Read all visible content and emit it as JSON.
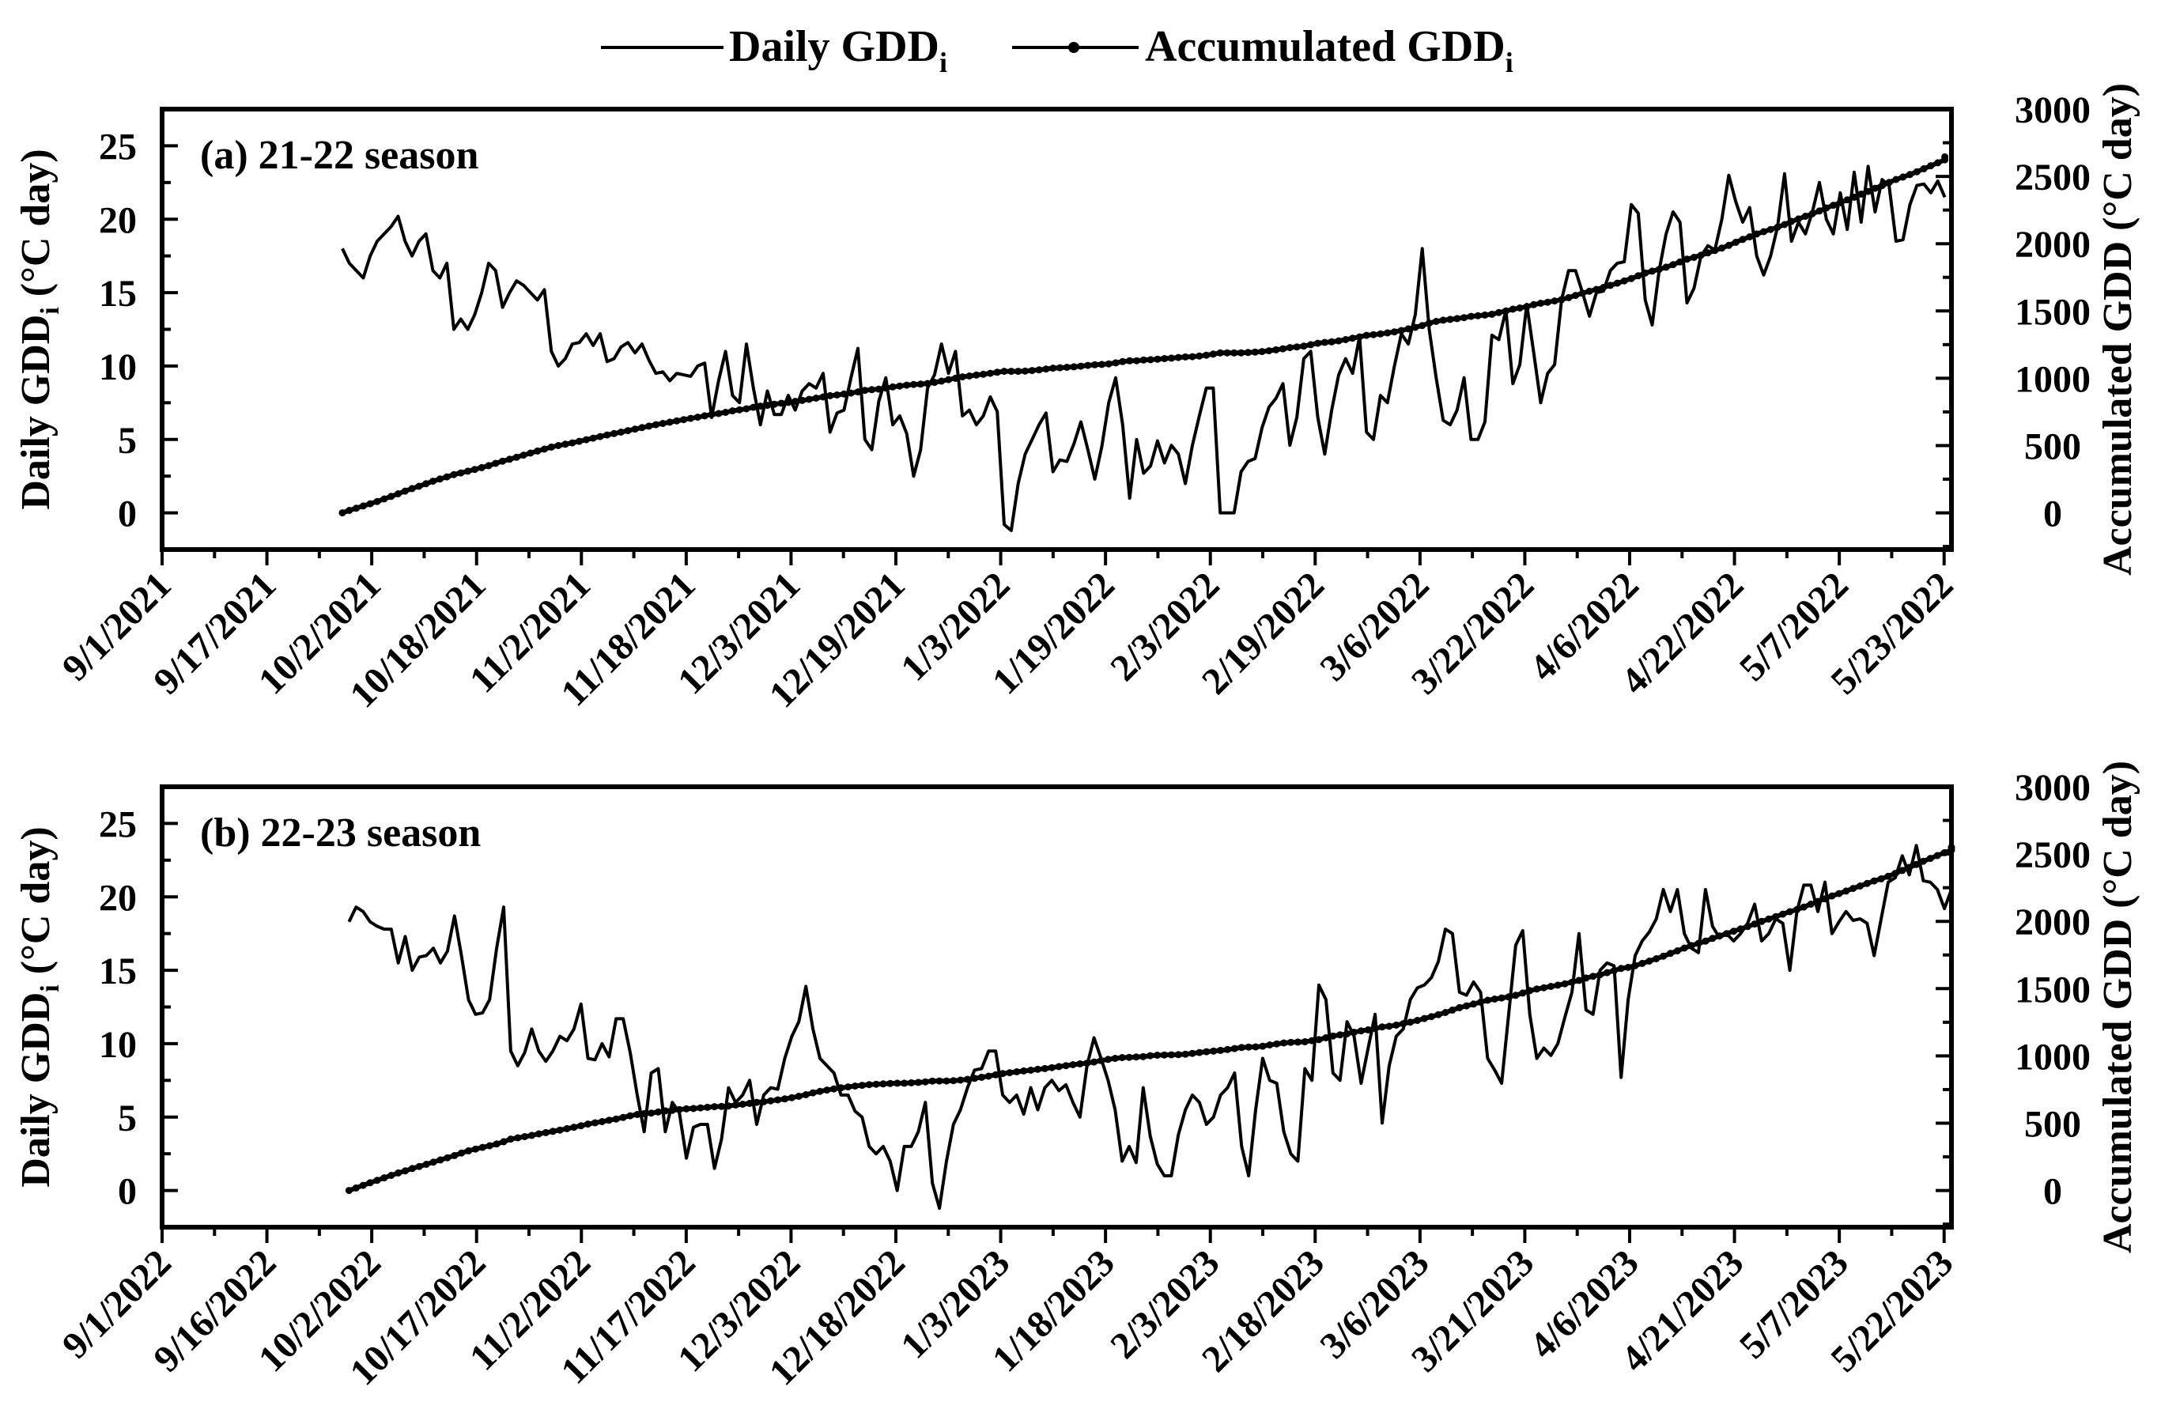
{
  "legend": {
    "daily_label": "Daily GDD",
    "daily_sub": "i",
    "acc_label": "Accumulated GDD",
    "acc_sub": "i"
  },
  "colors": {
    "line": "#000000",
    "background": "#ffffff"
  },
  "chart_data": [
    {
      "type": "line",
      "title": "(a) 21-22 season",
      "ylabel_left_main": "Daily GDD",
      "ylabel_left_sub": "i",
      "ylabel_left_tail": " (°C day)",
      "ylabel_right": "Accumulated GDD (°C day)",
      "xlim": [
        0,
        268
      ],
      "ylim_left": [
        -2.5,
        27.5
      ],
      "ylim_right": [
        -272.7,
        3000
      ],
      "yticks_left": [
        0,
        5,
        10,
        15,
        20,
        25
      ],
      "yticks_right": [
        0,
        500,
        1000,
        1500,
        2000,
        2500,
        3000
      ],
      "xtick_labels": [
        "9/1/2021",
        "9/17/2021",
        "10/2/2021",
        "10/18/2021",
        "11/2/2021",
        "11/18/2021",
        "12/3/2021",
        "12/19/2021",
        "1/3/2022",
        "1/19/2022",
        "2/3/2022",
        "2/19/2022",
        "3/6/2022",
        "3/22/2022",
        "4/6/2022",
        "4/22/2022",
        "5/7/2022",
        "5/23/2022"
      ],
      "start_day": 27,
      "series": [
        {
          "name": "Daily GDDi",
          "values": [
            18,
            17,
            16.5,
            16,
            17.5,
            18.5,
            19,
            19.5,
            20.2,
            18.5,
            17.5,
            18.5,
            19,
            16.5,
            16,
            17,
            12.5,
            13.2,
            12.5,
            13.5,
            15,
            17,
            16.5,
            14,
            15,
            15.8,
            15.5,
            15,
            14.5,
            15.2,
            11,
            10,
            10.5,
            11.5,
            11.6,
            12.2,
            11.4,
            12.2,
            10.3,
            10.5,
            11.3,
            11.6,
            10.9,
            11.5,
            10.4,
            9.5,
            9.6,
            9,
            9.5,
            9.4,
            9.3,
            10,
            10.2,
            6.5,
            9,
            11,
            8,
            7.5,
            11.5,
            8.5,
            6,
            8.3,
            6.7,
            6.7,
            8,
            7,
            8.3,
            8.8,
            8.5,
            9.5,
            5.5,
            6.8,
            7,
            9.2,
            11.2,
            5,
            4.3,
            7.6,
            9.2,
            6,
            6.6,
            5.4,
            2.5,
            4.3,
            8.5,
            9.4,
            11.5,
            9.5,
            11,
            6.6,
            7,
            6,
            6.6,
            7.9,
            6.9,
            -0.8,
            -1.2,
            2,
            4,
            5,
            6,
            6.8,
            2.8,
            3.6,
            3.5,
            4.7,
            6.2,
            4.3,
            2.3,
            4.5,
            7.5,
            9.2,
            6,
            1,
            5,
            2.7,
            3.2,
            4.9,
            3.4,
            4.6,
            4,
            2,
            4.6,
            6.6,
            8.5,
            8.5,
            0,
            0,
            0,
            2.8,
            3.5,
            3.7,
            5.8,
            7.2,
            7.8,
            8.8,
            4.6,
            6.5,
            10.5,
            11,
            6.5,
            4,
            7,
            9.4,
            10.5,
            9.5,
            12,
            5.5,
            5,
            8,
            7.5,
            10,
            12.2,
            11.5,
            13.5,
            18,
            12.5,
            9.2,
            6.3,
            6,
            7,
            9.2,
            5,
            5,
            6.2,
            12.1,
            11.8,
            13.8,
            8.8,
            10.1,
            14.2,
            10.9,
            7.5,
            9.5,
            10.1,
            14.5,
            16.5,
            16.5,
            15,
            13.4,
            15,
            15.1,
            16.5,
            17,
            17.1,
            21,
            20.4,
            14.5,
            12.8,
            16.5,
            19,
            20.5,
            19.8,
            14.3,
            15.3,
            17.5,
            18.2,
            17.9,
            20,
            23,
            21.2,
            19.8,
            20.8,
            17.5,
            16.2,
            17.5,
            19.5,
            23.1,
            18.5,
            19.8,
            19,
            20.5,
            22.5,
            20,
            19,
            21.8,
            19.3,
            23.2,
            19.8,
            23.6,
            20.5,
            22.7,
            22.3,
            18.5,
            18.6,
            21,
            22.3,
            22.4,
            21.8,
            22.6,
            21.5
          ],
          "accumulated_end": 2645
        }
      ]
    },
    {
      "type": "line",
      "title": "(b) 22-23 season",
      "ylabel_left_main": "Daily GDD",
      "ylabel_left_sub": "i",
      "ylabel_left_tail": " (°C day)",
      "ylabel_right": "Accumulated GDD (°C day)",
      "xlim": [
        0,
        268
      ],
      "ylim_left": [
        -2.5,
        27.5
      ],
      "ylim_right": [
        -272.7,
        3000
      ],
      "yticks_left": [
        0,
        5,
        10,
        15,
        20,
        25
      ],
      "yticks_right": [
        0,
        500,
        1000,
        1500,
        2000,
        2500,
        3000
      ],
      "xtick_labels": [
        "9/1/2022",
        "9/16/2022",
        "10/2/2022",
        "10/17/2022",
        "11/2/2022",
        "11/17/2022",
        "12/3/2022",
        "12/18/2022",
        "1/3/2023",
        "1/18/2023",
        "2/3/2023",
        "2/18/2023",
        "3/6/2023",
        "3/21/2023",
        "4/6/2023",
        "4/21/2023",
        "5/7/2023",
        "5/22/2023"
      ],
      "start_day": 28,
      "series": [
        {
          "name": "Daily GDDi",
          "values": [
            18.3,
            19.3,
            19,
            18.3,
            18,
            17.8,
            17.8,
            15.5,
            17.3,
            15,
            15.9,
            16,
            16.5,
            15.5,
            16.3,
            18.7,
            16,
            13,
            12,
            12.1,
            13,
            16.5,
            19.3,
            9.5,
            8.5,
            9.4,
            11,
            9.5,
            8.8,
            9.5,
            10.5,
            10.2,
            11,
            12.7,
            9,
            8.9,
            10,
            9.1,
            11.7,
            11.7,
            9.4,
            6.5,
            4,
            8,
            8.3,
            4,
            6,
            5.3,
            2.2,
            4.3,
            4.5,
            4.5,
            1.5,
            3.5,
            7,
            6,
            6.5,
            7.5,
            4.5,
            6.5,
            7,
            6.9,
            9,
            10.5,
            11.5,
            13.9,
            11,
            9,
            8.5,
            8,
            6.5,
            6.5,
            5.4,
            5,
            3,
            2.5,
            3,
            2,
            0,
            3,
            3,
            4,
            6,
            0.5,
            -1.2,
            2,
            4.5,
            5.5,
            7,
            8.2,
            8.3,
            9.5,
            9.5,
            6.5,
            6,
            6.5,
            5.2,
            7,
            5.5,
            7,
            7.5,
            6.8,
            7.2,
            6,
            5,
            8.5,
            10.4,
            9,
            7.5,
            5.5,
            2,
            3,
            1.9,
            7,
            3.7,
            1.8,
            1,
            1,
            3.8,
            5.5,
            6.5,
            6,
            4.5,
            5,
            6.5,
            7,
            8,
            3,
            1,
            5.5,
            9,
            7.5,
            7.3,
            4,
            2.5,
            2,
            8.3,
            7.5,
            14,
            13,
            8,
            7.5,
            11.5,
            10.5,
            7.3,
            9.7,
            12,
            4.6,
            8.5,
            10.5,
            11,
            13,
            13.8,
            14,
            14.5,
            15.6,
            17.8,
            17.5,
            13.5,
            13.3,
            14.2,
            13.5,
            9,
            8.2,
            7.3,
            12,
            16.7,
            17.7,
            12,
            9,
            9.7,
            9.2,
            10,
            11.8,
            13.5,
            17.5,
            12.3,
            12,
            15,
            15.5,
            15.3,
            7.7,
            13,
            16,
            17,
            17.6,
            18.5,
            20.5,
            19,
            20.5,
            17.5,
            16.5,
            16.2,
            20.5,
            18,
            17.2,
            17.5,
            17,
            17.5,
            18.2,
            19.5,
            17,
            17.5,
            18.5,
            18.2,
            15,
            19,
            20.8,
            20.8,
            19,
            21,
            17.5,
            18.3,
            19,
            18.4,
            18.5,
            18.2,
            16,
            18.5,
            21,
            21.3,
            22.8,
            21.5,
            23.5,
            21.1,
            21,
            20.5,
            19.2,
            20.5
          ],
          "accumulated_end": 2550
        }
      ]
    }
  ]
}
